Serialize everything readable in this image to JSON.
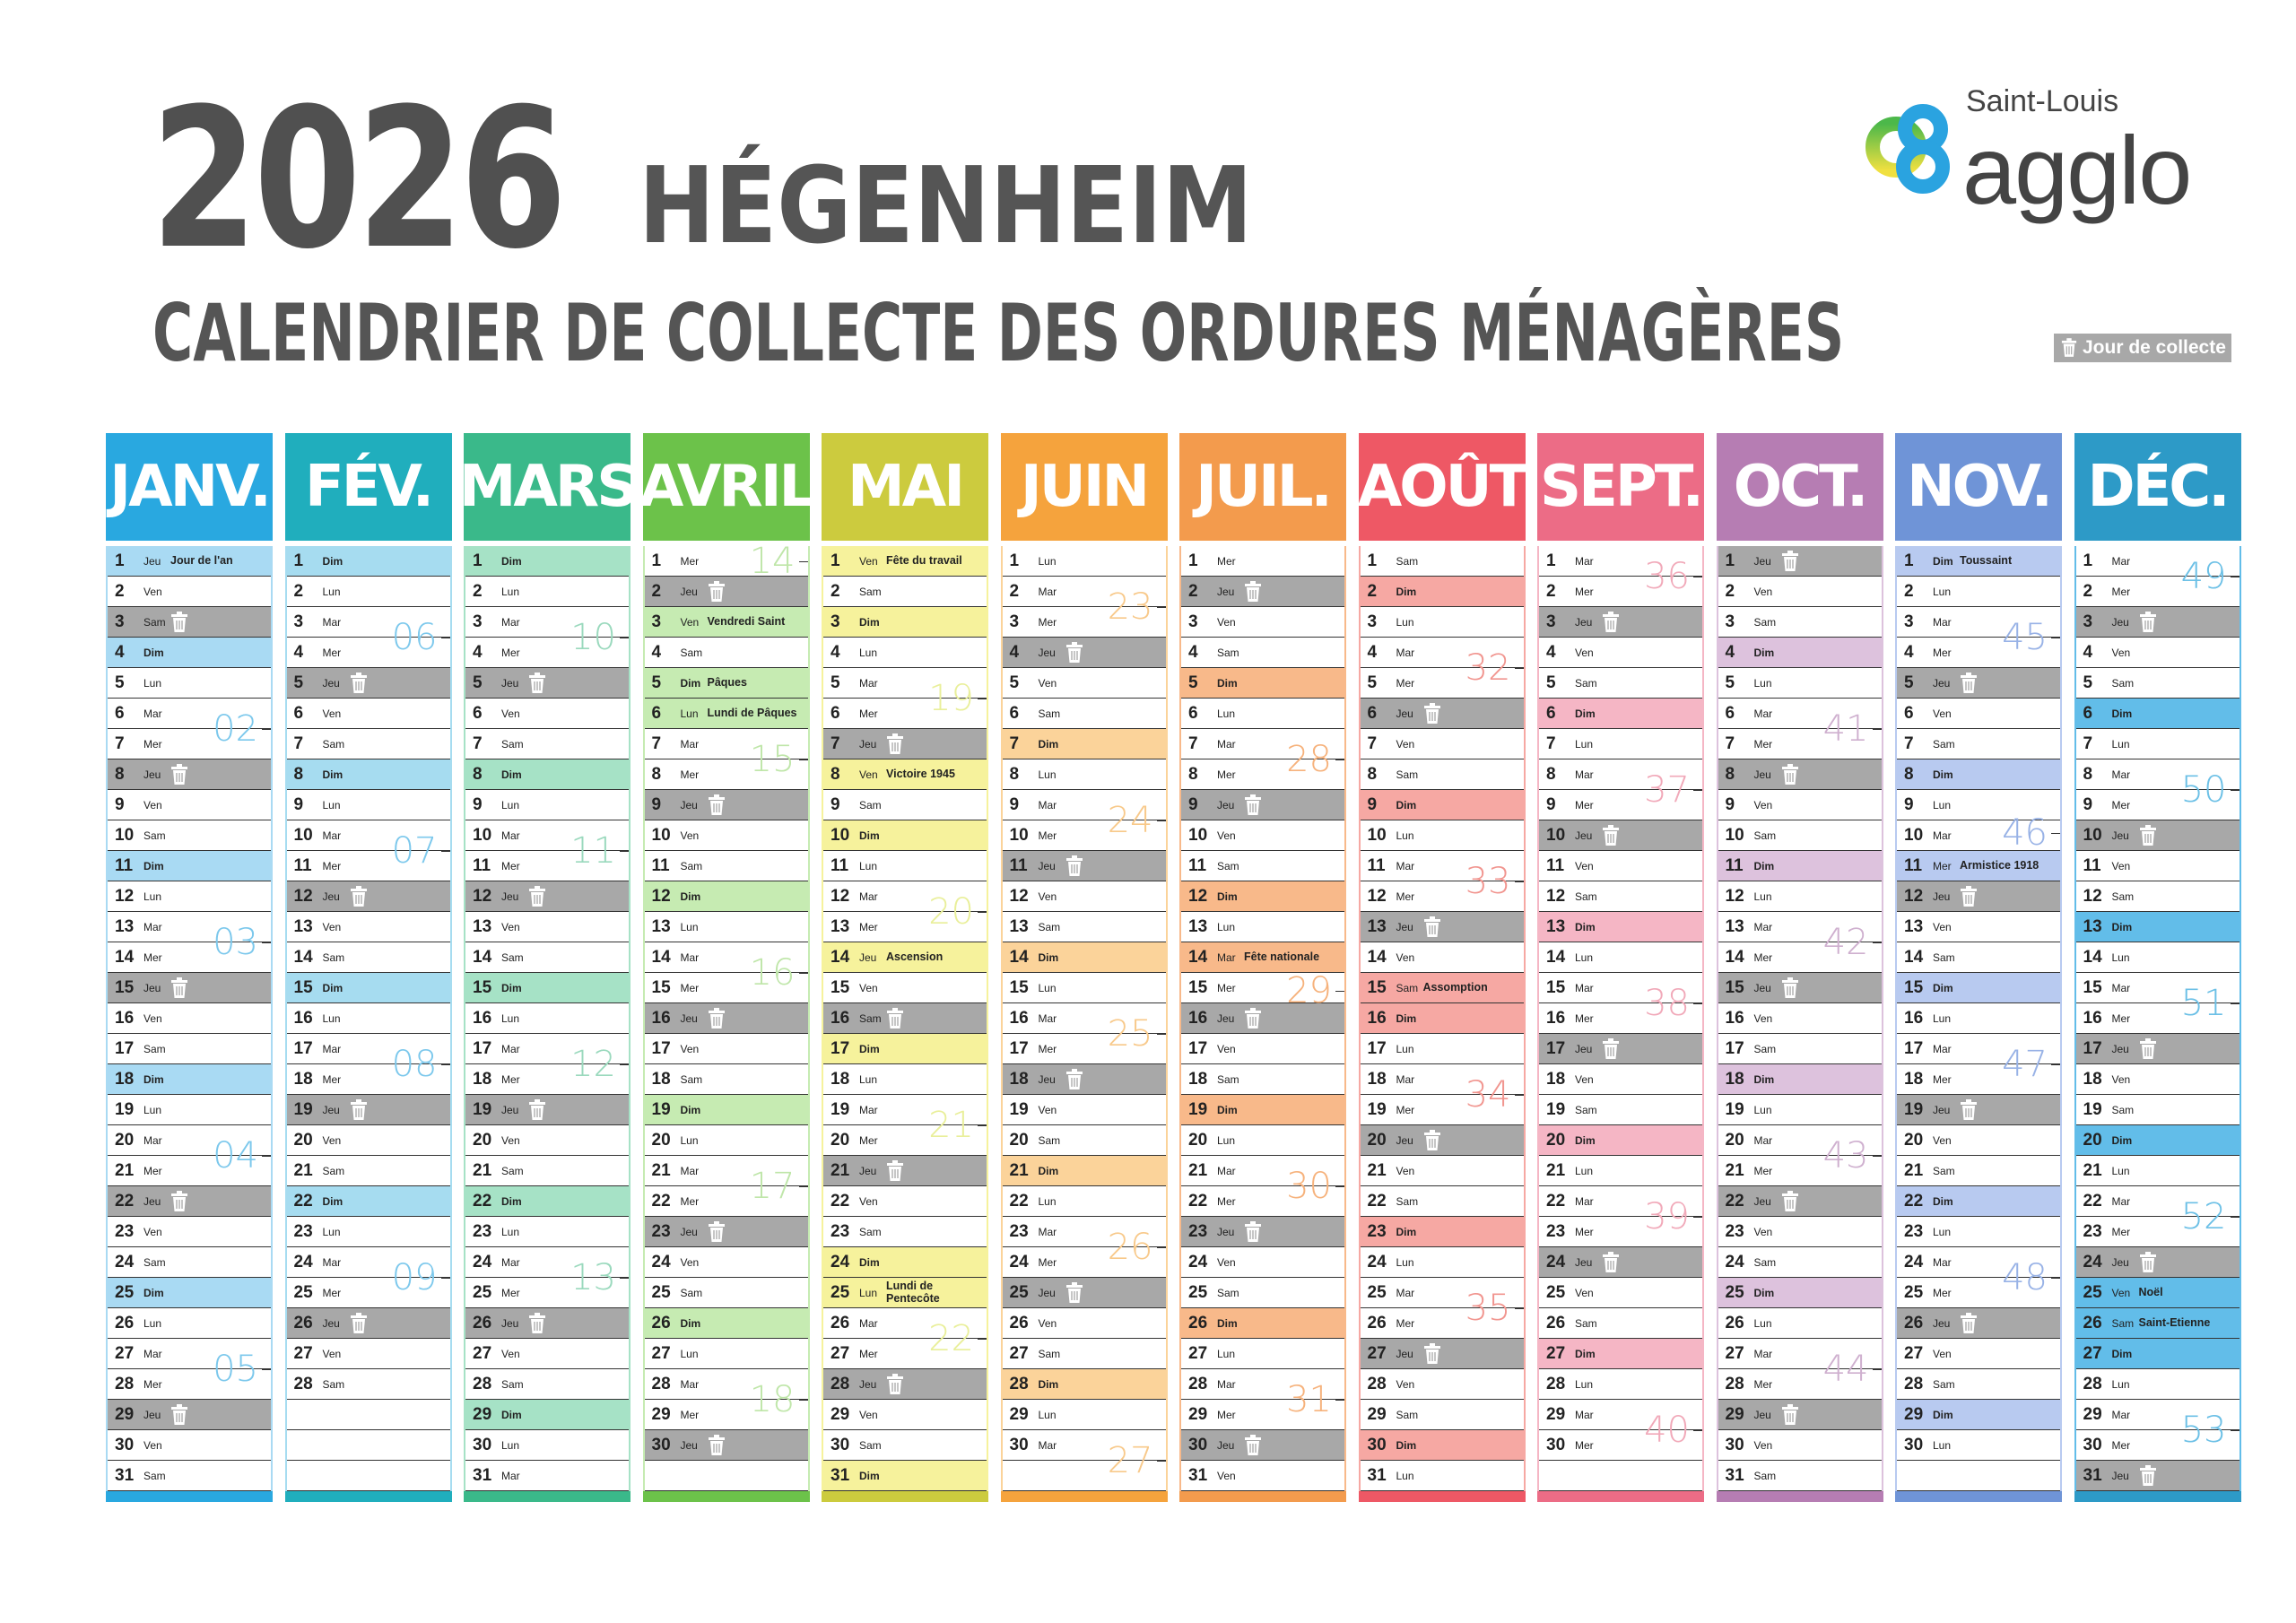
{
  "header": {
    "year": "2026",
    "town": "HÉGENHEIM",
    "subtitle": "CALENDRIER DE COLLECTE DES ORDURES MÉNAGÈRES",
    "logo_line1": "Saint-Louis",
    "logo_line2": "agglo",
    "legend_label": "Jour de collecte",
    "legend_icon": "trash-icon"
  },
  "weekdays": [
    "Lun",
    "Mar",
    "Mer",
    "Jeu",
    "Ven",
    "Sam",
    "Dim"
  ],
  "collect_color": "#a8a8a8",
  "months": [
    {
      "name": "JANV.",
      "color": "#29a8e0",
      "light": "#a9daf3",
      "wk": "#7cc8ec",
      "days": 31,
      "start": 3,
      "holidays": {
        "1": "Jour de l'an"
      },
      "collect": [
        3,
        8,
        15,
        22,
        29
      ],
      "weeks": [
        {
          "n": "02",
          "after": 6
        },
        {
          "n": "03",
          "after": 13
        },
        {
          "n": "04",
          "after": 20
        },
        {
          "n": "05",
          "after": 27
        }
      ]
    },
    {
      "name": "FÉV.",
      "color": "#20aebd",
      "light": "#a6dcf0",
      "wk": "#7cc8ec",
      "days": 28,
      "start": 6,
      "holidays": {},
      "collect": [
        5,
        12,
        19,
        26
      ],
      "weeks": [
        {
          "n": "06",
          "after": 3
        },
        {
          "n": "07",
          "after": 10
        },
        {
          "n": "08",
          "after": 17
        },
        {
          "n": "09",
          "after": 24
        }
      ]
    },
    {
      "name": "MARS",
      "color": "#3ab98a",
      "light": "#a6e2c6",
      "wk": "#9ad9bd",
      "days": 31,
      "start": 6,
      "holidays": {},
      "collect": [
        5,
        12,
        19,
        26
      ],
      "weeks": [
        {
          "n": "10",
          "after": 3
        },
        {
          "n": "11",
          "after": 10
        },
        {
          "n": "12",
          "after": 17
        },
        {
          "n": "13",
          "after": 24
        }
      ]
    },
    {
      "name": "AVRIL",
      "color": "#6cc24a",
      "light": "#c6ebb2",
      "wk": "#bfe6a9",
      "days": 30,
      "start": 2,
      "holidays": {
        "3": "Vendredi Saint",
        "5": "Pâques",
        "6": "Lundi de Pâques"
      },
      "collect": [
        2,
        9,
        16,
        23,
        30
      ],
      "weeks": [
        {
          "n": "14",
          "after": 0
        },
        {
          "n": "15",
          "after": 7
        },
        {
          "n": "16",
          "after": 14
        },
        {
          "n": "17",
          "after": 21
        },
        {
          "n": "18",
          "after": 28
        }
      ]
    },
    {
      "name": "MAI",
      "color": "#cccb3e",
      "light": "#f6f29c",
      "wk": "#e9ef9a",
      "days": 31,
      "start": 4,
      "holidays": {
        "1": "Fête du travail",
        "8": "Victoire 1945",
        "14": "Ascension",
        "25": "Lundi de Pentecôte"
      },
      "collect": [
        7,
        16,
        21,
        28
      ],
      "weeks": [
        {
          "n": "19",
          "after": 5
        },
        {
          "n": "20",
          "after": 12
        },
        {
          "n": "21",
          "after": 19
        },
        {
          "n": "22",
          "after": 26
        }
      ]
    },
    {
      "name": "JUIN",
      "color": "#f5a33d",
      "light": "#fbd39a",
      "wk": "#f8c98a",
      "days": 30,
      "start": 0,
      "holidays": {},
      "collect": [
        4,
        11,
        18,
        25
      ],
      "weeks": [
        {
          "n": "23",
          "after": 2
        },
        {
          "n": "24",
          "after": 9
        },
        {
          "n": "25",
          "after": 16
        },
        {
          "n": "26",
          "after": 23
        },
        {
          "n": "27",
          "after": 30
        }
      ]
    },
    {
      "name": "JUIL.",
      "color": "#f39b4d",
      "light": "#f8b98a",
      "wk": "#f6b27c",
      "days": 31,
      "start": 2,
      "holidays": {
        "14": "Fête nationale"
      },
      "collect": [
        2,
        9,
        16,
        23,
        30
      ],
      "weeks": [
        {
          "n": "28",
          "after": 7
        },
        {
          "n": "29",
          "after": 14
        },
        {
          "n": "30",
          "after": 21
        },
        {
          "n": "31",
          "after": 28
        }
      ]
    },
    {
      "name": "AOÛT",
      "color": "#ee5865",
      "light": "#f6a8a3",
      "wk": "#f1958f",
      "days": 31,
      "start": 5,
      "holidays": {
        "15": "Assomption"
      },
      "collect": [
        6,
        13,
        20,
        27
      ],
      "weeks": [
        {
          "n": "32",
          "after": 4
        },
        {
          "n": "33",
          "after": 11
        },
        {
          "n": "34",
          "after": 18
        },
        {
          "n": "35",
          "after": 25
        }
      ]
    },
    {
      "name": "SEPT.",
      "color": "#ec6c86",
      "light": "#f5b6c5",
      "wk": "#f1a9b9",
      "days": 30,
      "start": 1,
      "holidays": {},
      "collect": [
        3,
        10,
        17,
        24
      ],
      "weeks": [
        {
          "n": "36",
          "after": 1
        },
        {
          "n": "37",
          "after": 8
        },
        {
          "n": "38",
          "after": 15
        },
        {
          "n": "39",
          "after": 22
        },
        {
          "n": "40",
          "after": 29
        }
      ]
    },
    {
      "name": "OCT.",
      "color": "#b67db3",
      "light": "#ddc2dd",
      "wk": "#cfb0cf",
      "days": 31,
      "start": 3,
      "holidays": {},
      "collect": [
        1,
        8,
        15,
        22,
        29
      ],
      "weeks": [
        {
          "n": "41",
          "after": 6
        },
        {
          "n": "42",
          "after": 13
        },
        {
          "n": "43",
          "after": 20
        },
        {
          "n": "44",
          "after": 27
        }
      ]
    },
    {
      "name": "NOV.",
      "color": "#6f94d7",
      "light": "#b8caf0",
      "wk": "#98b2e6",
      "days": 30,
      "start": 6,
      "holidays": {
        "1": "Toussaint",
        "11": "Armistice 1918"
      },
      "collect": [
        5,
        12,
        19,
        26
      ],
      "weeks": [
        {
          "n": "45",
          "after": 3
        },
        {
          "n": "46",
          "after": 10
        },
        {
          "n": "47",
          "after": 17
        },
        {
          "n": "48",
          "after": 24
        }
      ]
    },
    {
      "name": "DÉC.",
      "color": "#2d9ac7",
      "light": "#62bde9",
      "wk": "#6cc0e6",
      "days": 31,
      "start": 1,
      "holidays": {
        "25": "Noël",
        "26": "Saint-Etienne"
      },
      "collect": [
        3,
        10,
        17,
        24,
        31
      ],
      "weeks": [
        {
          "n": "49",
          "after": 1
        },
        {
          "n": "50",
          "after": 8
        },
        {
          "n": "51",
          "after": 15
        },
        {
          "n": "52",
          "after": 22
        },
        {
          "n": "53",
          "after": 29
        }
      ]
    }
  ]
}
